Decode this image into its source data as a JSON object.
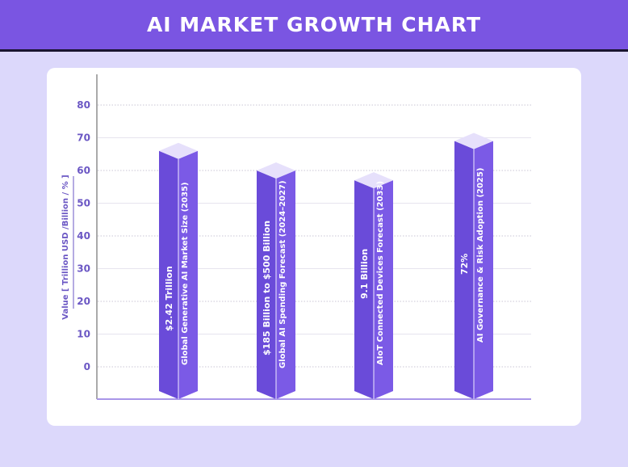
{
  "title": "AI MARKET GROWTH CHART",
  "colors": {
    "header": "#7a55e2",
    "background": "#dcd8fb",
    "bar_left": "#6a4bd9",
    "bar_right": "#7b5ae6",
    "bar_top": "#e6e0fb",
    "axis": "#6b57c4"
  },
  "chart_data": {
    "type": "bar",
    "style": "3d-column",
    "ylabel": "Value [ Trillion USD /Billion / % ]",
    "yticks": [
      0,
      10,
      20,
      30,
      40,
      50,
      60,
      70,
      80
    ],
    "ylim": [
      0,
      80
    ],
    "grid": true,
    "categories": [
      "Global Generative AI Market Size (2035)",
      "Global AI Spending Forecast  (2024–2027)",
      "AIoT Connected Devices Forecast (2033)",
      "AI Governance & Risk Adoption (2025)"
    ],
    "data_labels": [
      "$2.42 Trillion",
      "$185 Billion to $500 Billion",
      "9.1 Billion",
      "72%"
    ],
    "values": [
      66,
      60,
      57,
      69
    ]
  }
}
